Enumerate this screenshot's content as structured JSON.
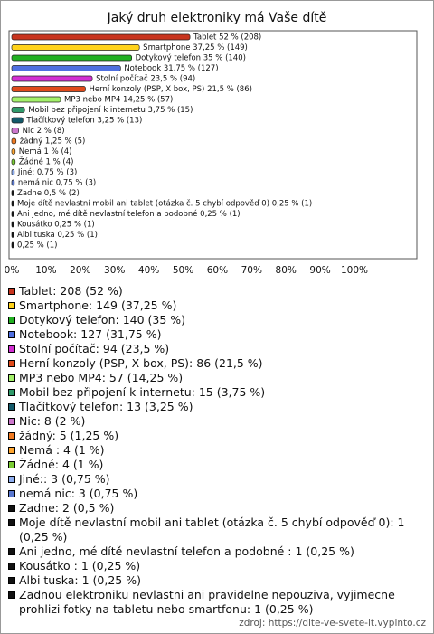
{
  "chart_data": {
    "type": "bar",
    "orientation": "horizontal",
    "title": "Jaký druh elektroniky má Vaše dítě",
    "values": [
      52,
      37.25,
      35,
      31.75,
      23.5,
      21.5,
      14.25,
      3.75,
      3.25,
      2,
      1.25,
      1,
      1,
      0.75,
      0.75,
      0.5,
      0.25,
      0.25,
      0.25,
      0.25,
      0.25
    ],
    "value_labels": [
      "Tablet 52 % (208)",
      "Smartphone 37,25 % (149)",
      "Dotykový telefon 35 % (140)",
      "Notebook 31,75 % (127)",
      "Stolní počítač 23,5 % (94)",
      "Herní konzoly (PSP, X box, PS) 21,5 % (86)",
      "MP3 nebo MP4 14,25 % (57)",
      "Mobil bez připojení k internetu 3,75 % (15)",
      "Tlačítkový telefon 3,25 % (13)",
      "Nic 2 % (8)",
      "žádný 1,25 % (5)",
      "Nemá 1 % (4)",
      "Žádné 1 % (4)",
      "Jiné: 0,75 % (3)",
      "nemá nic 0,75 % (3)",
      "Zadne 0,5 % (2)",
      "Moje dítě nevlastní mobil ani tablet (otázka č. 5 chybí odpověď 0) 0,25 % (1)",
      "Ani jedno, mé dítě nevlastní telefon a podobné  0,25 % (1)",
      "Kousátko 0,25 % (1)",
      "Albi tuska 0,25 % (1)",
      "0,25 % (1)"
    ],
    "legend_labels": [
      "Tablet: 208 (52 %)",
      "Smartphone: 149 (37,25 %)",
      "Dotykový telefon: 140 (35 %)",
      "Notebook: 127 (31,75 %)",
      "Stolní počítač: 94 (23,5 %)",
      "Herní konzoly (PSP, X box, PS): 86 (21,5 %)",
      "MP3 nebo MP4: 57 (14,25 %)",
      "Mobil bez připojení k internetu: 15 (3,75 %)",
      "Tlačítkový telefon: 13 (3,25 %)",
      "Nic: 8 (2 %)",
      "žádný: 5 (1,25 %)",
      "Nemá : 4 (1 %)",
      "Žádné: 4 (1 %)",
      "Jiné:: 3 (0,75 %)",
      "nemá nic: 3 (0,75 %)",
      "Zadne: 2 (0,5 %)",
      "Moje dítě nevlastní mobil ani tablet (otázka č. 5 chybí odpověď 0): 1 (0,25 %)",
      "Ani jedno, mé dítě nevlastní telefon a podobné : 1 (0,25 %)",
      "Kousátko : 1 (0,25 %)",
      "Albi tuska: 1 (0,25 %)",
      "Zadnou elektroniku nevlastni ani pravidelne nepouziva, vyjimecne prohlizi fotky na tabletu nebo smartfonu: 1 (0,25 %)"
    ],
    "colors": [
      "#c8341e",
      "#ffd21a",
      "#22b022",
      "#4f6fe0",
      "#d22ed2",
      "#e04a1a",
      "#a3f06a",
      "#2f9a6a",
      "#145a6a",
      "#cc77cc",
      "#f07a22",
      "#ffa630",
      "#7acc33",
      "#8eaef0",
      "#5a78d0",
      "#111111",
      "#111111",
      "#111111",
      "#111111",
      "#111111",
      "#111111"
    ],
    "xlim": [
      0,
      100
    ],
    "xticks": [
      {
        "value": 0,
        "label": "0%"
      },
      {
        "value": 10,
        "label": "10%"
      },
      {
        "value": 20,
        "label": "20%"
      },
      {
        "value": 30,
        "label": "30%"
      },
      {
        "value": 40,
        "label": "40%"
      },
      {
        "value": 50,
        "label": "50%"
      },
      {
        "value": 60,
        "label": "60%"
      },
      {
        "value": 70,
        "label": "70%"
      },
      {
        "value": 80,
        "label": "80%"
      },
      {
        "value": 90,
        "label": "90%"
      },
      {
        "value": 100,
        "label": "100%"
      }
    ],
    "source": "zdroj: https://dite-ve-svete-it.vyplnto.cz"
  }
}
